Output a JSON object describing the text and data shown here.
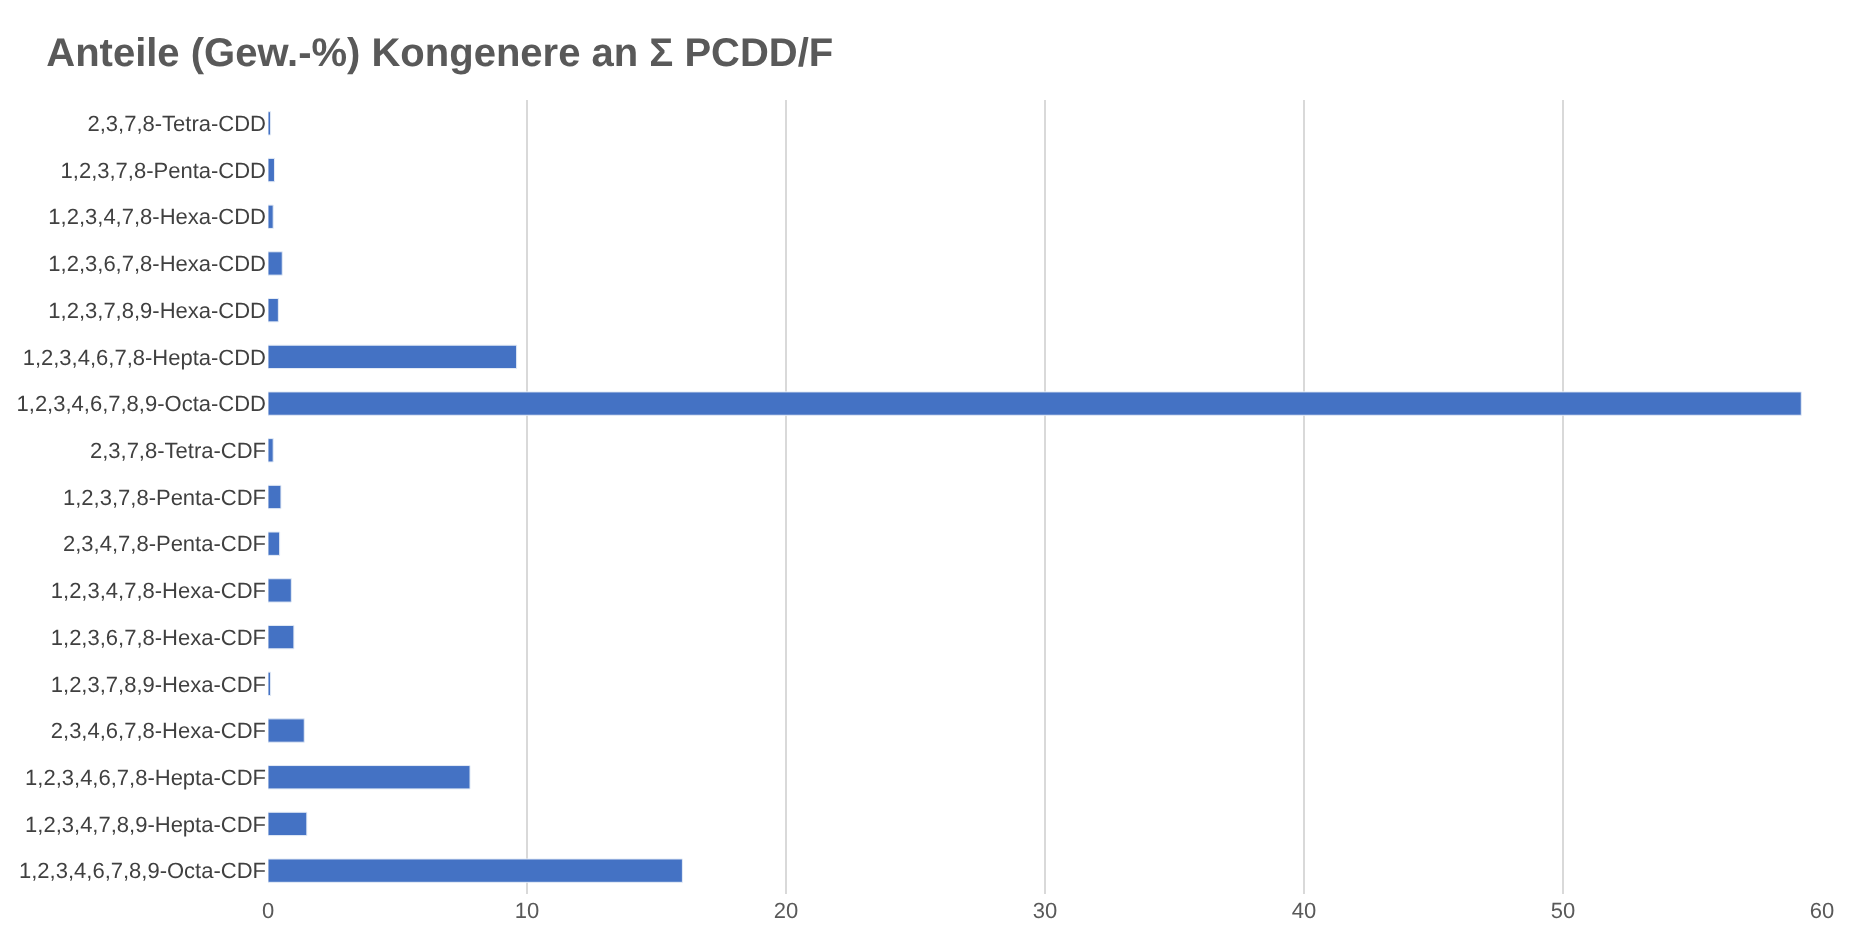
{
  "chart_data": {
    "type": "bar",
    "orientation": "horizontal",
    "title": "Anteile (Gew.-%) Kongenere an Σ PCDD/F",
    "categories": [
      "2,3,7,8-Tetra-CDD",
      "1,2,3,7,8-Penta-CDD",
      "1,2,3,4,7,8-Hexa-CDD",
      "1,2,3,6,7,8-Hexa-CDD",
      "1,2,3,7,8,9-Hexa-CDD",
      "1,2,3,4,6,7,8-Hepta-CDD",
      "1,2,3,4,6,7,8,9-Octa-CDD",
      "2,3,7,8-Tetra-CDF",
      "1,2,3,7,8-Penta-CDF",
      "2,3,4,7,8-Penta-CDF",
      "1,2,3,4,7,8-Hexa-CDF",
      "1,2,3,6,7,8-Hexa-CDF",
      "1,2,3,7,8,9-Hexa-CDF",
      "2,3,4,6,7,8-Hexa-CDF",
      "1,2,3,4,6,7,8-Hepta-CDF",
      "1,2,3,4,7,8,9-Hepta-CDF",
      "1,2,3,4,6,7,8,9-Octa-CDF"
    ],
    "values": [
      0.1,
      0.25,
      0.2,
      0.55,
      0.4,
      9.6,
      59.2,
      0.2,
      0.5,
      0.45,
      0.9,
      1.0,
      0.1,
      1.4,
      7.8,
      1.5,
      16.0
    ],
    "color": "#4472c4",
    "xlim": [
      0,
      60
    ],
    "xticks": [
      0,
      10,
      20,
      30,
      40,
      50,
      60
    ],
    "grid": "x"
  }
}
